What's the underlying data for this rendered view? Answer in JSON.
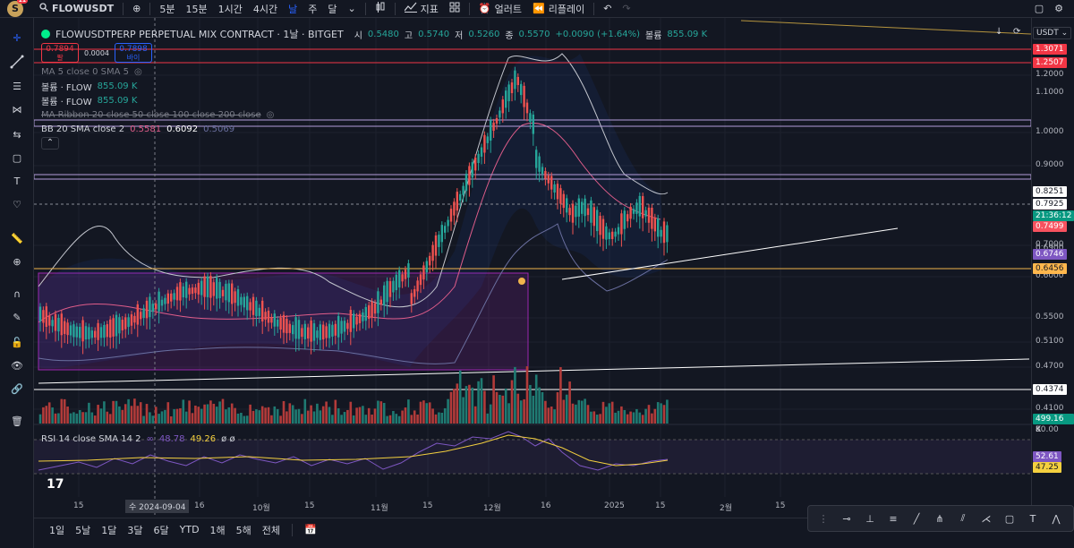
{
  "topbar": {
    "avatar_letter": "S",
    "avatar_badge": "11",
    "symbol": "FLOWUSDT",
    "intervals": [
      "5분",
      "15분",
      "1시간",
      "4시간",
      "날",
      "주",
      "달"
    ],
    "active_interval": "날",
    "indicators_label": "지표",
    "alert_label": "얼러트",
    "replay_label": "리플레이"
  },
  "legend": {
    "title": "FLOWUSDTPERP PERPETUAL MIX CONTRACT · 1날 · BITGET",
    "open_label": "시",
    "open": "0.5480",
    "high_label": "고",
    "high": "0.5740",
    "low_label": "저",
    "low": "0.5260",
    "close_label": "종",
    "close": "0.5570",
    "change": "+0.0090 (+1.64%)",
    "volume_label": "볼륨",
    "volume": "855.09 K",
    "sell_price": "0.7894",
    "sell_label": "팔",
    "spread": "0.0004",
    "buy_price": "0.7898",
    "buy_label": "바이",
    "ma": "MA 5 close 0 SMA 5",
    "vol1_label": "볼륨 · FLOW",
    "vol1_value": "855.09 K",
    "vol2_label": "볼륨 · FLOW",
    "vol2_value": "855.09 K",
    "ma_ribbon": "MA Ribbon 20 close 50 close 100 close 200 close",
    "bb_label": "BB 20 SMA close 2",
    "bb_mid": "0.5581",
    "bb_upper": "0.6092",
    "bb_lower": "0.5069"
  },
  "rsi": {
    "label": "RSI 14 close SMA 14 2",
    "rsi_value": "48.78",
    "sma_value": "49.26",
    "extra": "ø ø"
  },
  "price_axis": {
    "currency": "USDT",
    "ticks": [
      "1.2000",
      "1.1000",
      "1.0000",
      "0.9000",
      "0.7000",
      "0.6900",
      "0.6000",
      "0.5500",
      "0.5100",
      "0.4700",
      "0.4100"
    ],
    "labels": [
      {
        "text": "1.3071",
        "color": "#f23645"
      },
      {
        "text": "1.2507",
        "color": "#f23645"
      },
      {
        "text": "0.8251",
        "color": "#ffffff",
        "fg": "#131722"
      },
      {
        "text": "0.7925",
        "color": "#ffffff",
        "fg": "#131722"
      },
      {
        "text": "21:36:12",
        "color": "#089981"
      },
      {
        "text": "0.7499",
        "color": "#f7525f"
      },
      {
        "text": "0.6746",
        "color": "#7e57c2"
      },
      {
        "text": "0.6456",
        "color": "#ffb74d",
        "fg": "#131722"
      },
      {
        "text": "0.4374",
        "color": "#ffffff",
        "fg": "#131722"
      },
      {
        "text": "499.16 K",
        "color": "#089981"
      },
      {
        "text": "80.00",
        "color": "transparent"
      },
      {
        "text": "52.61",
        "color": "#7e57c2"
      },
      {
        "text": "47.25",
        "color": "#f4d03f",
        "fg": "#131722"
      }
    ]
  },
  "time_axis": {
    "ticks": [
      "15",
      "2024-09-04",
      "16",
      "10월",
      "15",
      "11월",
      "15",
      "12월",
      "16",
      "2025",
      "15",
      "2월",
      "15"
    ],
    "cursor_label": "수 2024-09-04"
  },
  "bottombar": {
    "ranges": [
      "1일",
      "5날",
      "1달",
      "3달",
      "6달",
      "YTD",
      "1해",
      "5해",
      "전체"
    ]
  },
  "colors": {
    "up": "#26a69a",
    "down": "#ef5350",
    "accent": "#2962ff",
    "background": "#131722"
  }
}
